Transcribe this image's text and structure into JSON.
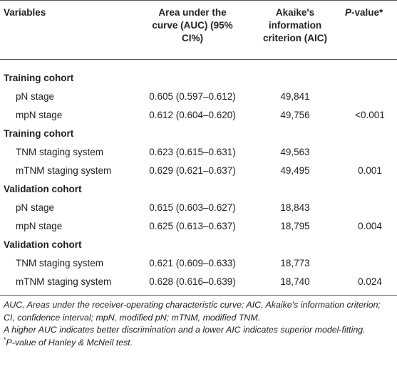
{
  "header": {
    "variables": "Variables",
    "auc": "Area under the curve (AUC) (95% CI%)",
    "aic": "Akaike's information criterion (AIC)",
    "p_italic": "P",
    "p_rest": "-value*"
  },
  "sections": [
    {
      "title": "Training cohort",
      "rows": [
        {
          "variable": "pN stage",
          "auc": "0.605 (0.597–0.612)",
          "aic": "49,841",
          "p": ""
        },
        {
          "variable": "mpN stage",
          "auc": "0.612 (0.604–0.620)",
          "aic": "49,756",
          "p": "<0.001"
        }
      ]
    },
    {
      "title": "Training cohort",
      "rows": [
        {
          "variable": "TNM staging system",
          "auc": "0.623 (0.615–0.631)",
          "aic": "49,563",
          "p": ""
        },
        {
          "variable": "mTNM staging system",
          "auc": "0.629 (0.621–0.637)",
          "aic": "49,495",
          "p": "0.001"
        }
      ]
    },
    {
      "title": "Validation cohort",
      "rows": [
        {
          "variable": "pN stage",
          "auc": "0.615 (0.603–0.627)",
          "aic": "18,843",
          "p": ""
        },
        {
          "variable": "mpN stage",
          "auc": "0.625 (0.613–0.637)",
          "aic": "18,795",
          "p": "0.004"
        }
      ]
    },
    {
      "title": "Validation cohort",
      "rows": [
        {
          "variable": "TNM staging system",
          "auc": "0.621 (0.609–0.633)",
          "aic": "18,773",
          "p": ""
        },
        {
          "variable": "mTNM staging system",
          "auc": "0.628 (0.616–0.639)",
          "aic": "18,740",
          "p": "0.024"
        }
      ]
    }
  ],
  "footnotes": {
    "abbreviations": "AUC, Areas under the receiver-operating characteristic curve; AIC, Akaike's information criterion; CI, confidence interval; mpN, modified pN; mTNM, modified TNM.",
    "interpretation": "A higher AUC indicates better discrimination and a lower AIC indicates superior model-fitting.",
    "pvalue_mark": "*",
    "pvalue_note": "P-value of Hanley & McNeil test."
  }
}
